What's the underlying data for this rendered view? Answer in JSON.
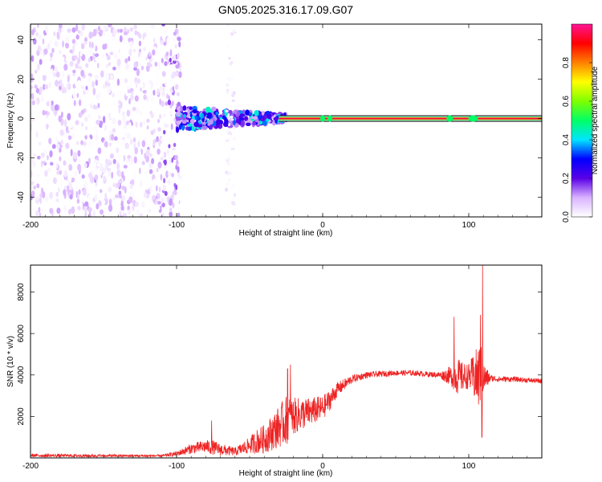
{
  "figure": {
    "title": "GN05.2025.316.17.09.G07"
  },
  "chart_data": [
    {
      "type": "heatmap",
      "xlabel": "Height of straight line (km)",
      "ylabel": "Frequency (Hz)",
      "xlim": [
        -200,
        150
      ],
      "ylim": [
        -50,
        48
      ],
      "x_ticks": [
        -200,
        -100,
        0,
        100
      ],
      "y_ticks": [
        -40,
        -20,
        0,
        20,
        40
      ],
      "colorbar": {
        "label": "Normalized spectral amplitude",
        "range": [
          0,
          1
        ],
        "ticks": [
          0.0,
          0.2,
          0.4,
          0.6,
          0.8
        ],
        "tick_labels": [
          "0.0",
          "0.2",
          "0.4",
          "0.6",
          "0.8"
        ],
        "colors": [
          "#ffffff",
          "#d9b3ff",
          "#5a00e6",
          "#0000ff",
          "#00e5ff",
          "#00ff66",
          "#7fff00",
          "#ffff00",
          "#ff8000",
          "#ff0000",
          "#ff1493"
        ]
      },
      "regions": [
        {
          "name": "diffuse scatter",
          "x_range": [
            -200,
            -97
          ],
          "freq_range": [
            -50,
            48
          ],
          "amplitude_range": [
            0.0,
            0.12
          ]
        },
        {
          "name": "transition band",
          "x_range": [
            -100,
            -25
          ],
          "freq_range": [
            -6,
            5
          ],
          "amplitude_range": [
            0.1,
            0.45
          ]
        },
        {
          "name": "sparse streak",
          "x_range": [
            -66,
            -60
          ],
          "freq_range": [
            -48,
            48
          ],
          "amplitude_range": [
            0.0,
            0.05
          ]
        },
        {
          "name": "stable tone",
          "x_range": [
            -30,
            150
          ],
          "freq_center": 0,
          "amplitude_peak": 1.0
        }
      ]
    },
    {
      "type": "line",
      "xlabel": "Height of straight line (km)",
      "ylabel": "SNR (10 * v/v)",
      "xlim": [
        -200,
        150
      ],
      "ylim": [
        0,
        9300
      ],
      "x_ticks": [
        -200,
        -100,
        0,
        100
      ],
      "y_ticks": [
        2000,
        4000,
        6000,
        8000
      ],
      "color": "#ee2222",
      "envelope": {
        "x": [
          -200,
          -150,
          -110,
          -100,
          -90,
          -80,
          -75,
          -70,
          -60,
          -50,
          -45,
          -40,
          -30,
          -25,
          -20,
          -15,
          -10,
          -5,
          0,
          5,
          10,
          20,
          30,
          40,
          50,
          60,
          70,
          80,
          88,
          92,
          96,
          100,
          104,
          106,
          108,
          110,
          115,
          120,
          130,
          140,
          150
        ],
        "mean": [
          120,
          100,
          100,
          200,
          450,
          550,
          500,
          400,
          300,
          600,
          800,
          900,
          1500,
          1800,
          2000,
          2100,
          2200,
          2300,
          2400,
          2800,
          3300,
          3800,
          4000,
          4050,
          4100,
          4100,
          4050,
          4000,
          3950,
          3950,
          3900,
          3950,
          3900,
          3900,
          3900,
          3850,
          3850,
          3800,
          3800,
          3750,
          3700
        ],
        "amplitude": [
          80,
          70,
          60,
          120,
          250,
          320,
          350,
          300,
          200,
          400,
          600,
          700,
          1000,
          1200,
          900,
          800,
          700,
          650,
          600,
          500,
          350,
          200,
          150,
          140,
          130,
          130,
          130,
          140,
          500,
          900,
          700,
          600,
          1200,
          1500,
          1800,
          800,
          160,
          140,
          130,
          120,
          120
        ]
      },
      "spikes": [
        {
          "x": -76,
          "y": 1800
        },
        {
          "x": -24,
          "y": 4300
        },
        {
          "x": -22,
          "y": 4500
        },
        {
          "x": 90,
          "y": 6800
        },
        {
          "x": 108,
          "y": 6900
        },
        {
          "x": 109,
          "y": 1000
        },
        {
          "x": 109.5,
          "y": 9300
        }
      ]
    }
  ]
}
